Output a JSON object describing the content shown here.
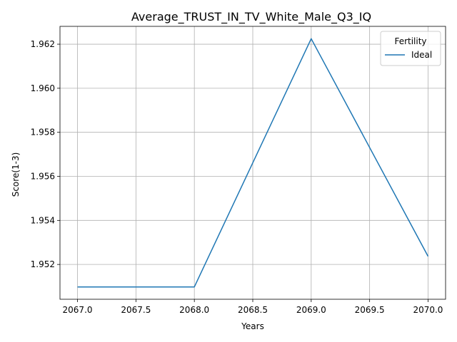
{
  "chart_data": {
    "type": "line",
    "title": "Average_TRUST_IN_TV_White_Male_Q3_IQ",
    "xlabel": "Years",
    "ylabel": "Score(1-3)",
    "x": [
      2067,
      2068,
      2069,
      2070
    ],
    "series": [
      {
        "name": "Ideal",
        "values": [
          1.95098,
          1.95098,
          1.96225,
          1.95237
        ],
        "color": "#1f77b4"
      }
    ],
    "xticks": [
      "2067.0",
      "2067.5",
      "2068.0",
      "2068.5",
      "2069.0",
      "2069.5",
      "2070.0"
    ],
    "yticks": [
      "1.952",
      "1.954",
      "1.956",
      "1.958",
      "1.960",
      "1.962"
    ],
    "xlim": [
      2066.85,
      2070.15
    ],
    "ylim": [
      1.95042,
      1.96281
    ],
    "grid": true,
    "legend": {
      "title": "Fertility",
      "placement": "top-right"
    }
  }
}
